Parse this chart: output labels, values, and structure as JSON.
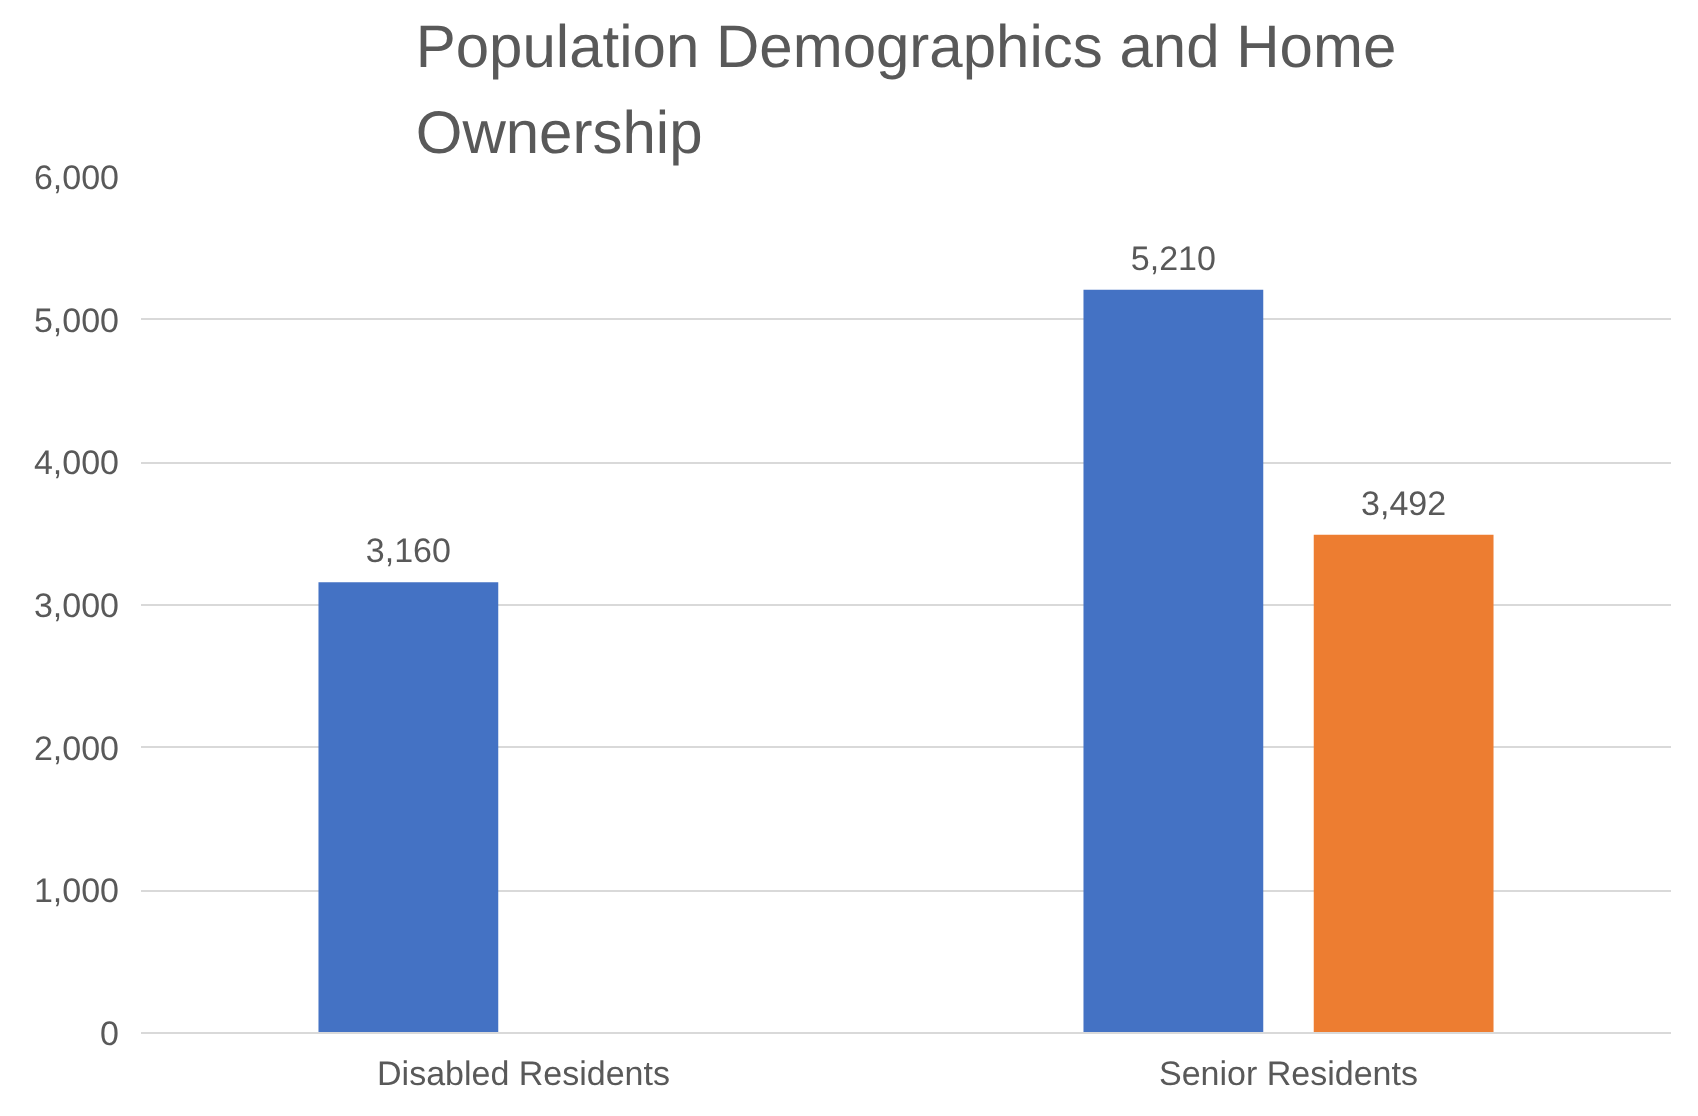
{
  "chart_data": {
    "type": "bar",
    "title": "Population Demographics and Home Ownership",
    "categories": [
      "Disabled Residents",
      "Senior Residents"
    ],
    "series": [
      {
        "color": "#4472c4",
        "values": [
          3160,
          5210
        ],
        "value_labels": [
          "3,160",
          "5,210"
        ]
      },
      {
        "color": "#ed7d31",
        "values": [
          null,
          3492
        ],
        "value_labels": [
          null,
          "3,492"
        ]
      }
    ],
    "ylim": [
      0,
      6000
    ],
    "yticks": [
      0,
      {
        "value": 1000,
        "label": "1,000"
      },
      {
        "value": 2000,
        "label": "2,000"
      },
      {
        "value": 3000,
        "label": "3,000"
      },
      {
        "value": 4000,
        "label": "4,000"
      },
      {
        "value": 5000,
        "label": "5,000"
      },
      {
        "value": 6000,
        "label": "6,000"
      }
    ],
    "grid": "y"
  }
}
